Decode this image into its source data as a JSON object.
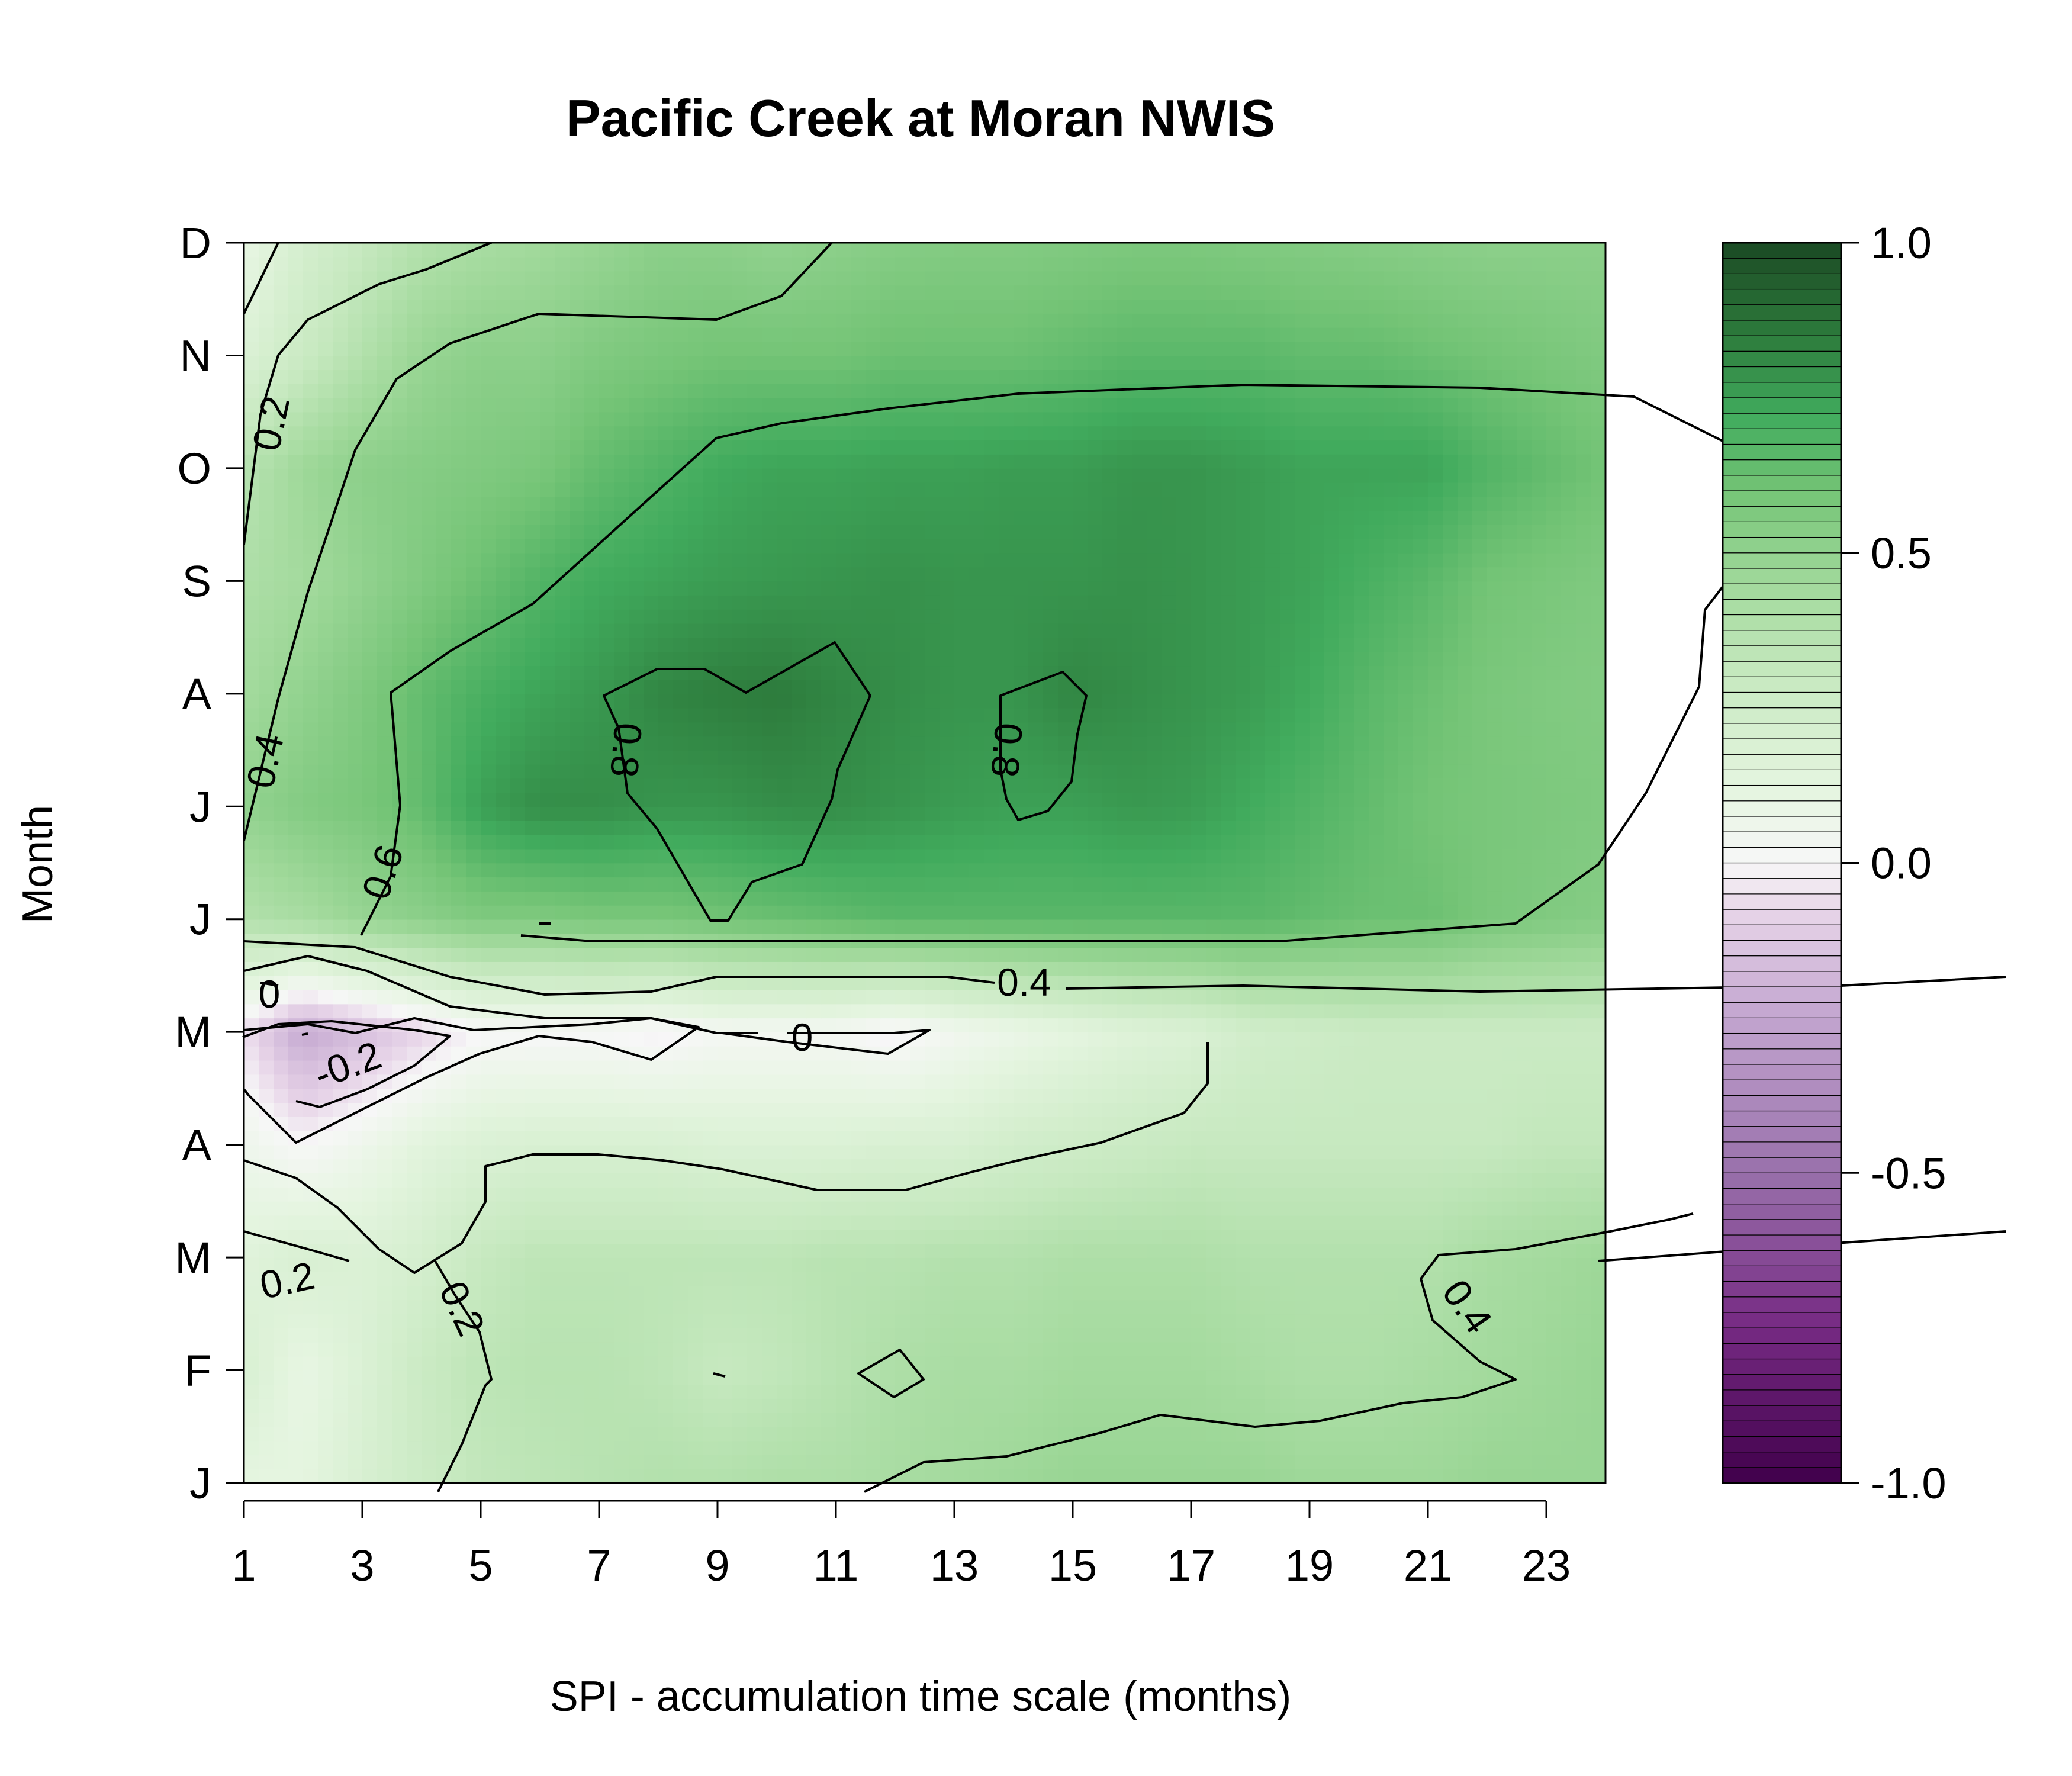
{
  "chart_data": {
    "type": "heatmap",
    "title": "Pacific Creek at Moran NWIS",
    "xlabel": "SPI - accumulation time scale (months)",
    "ylabel": "Month",
    "x_ticks": [
      "1",
      "3",
      "5",
      "7",
      "9",
      "11",
      "13",
      "15",
      "17",
      "19",
      "21",
      "23"
    ],
    "x_tick_values": [
      1,
      3,
      5,
      7,
      9,
      11,
      13,
      15,
      17,
      19,
      21,
      23
    ],
    "y_ticks": [
      "J",
      "F",
      "M",
      "A",
      "M",
      "J",
      "J",
      "A",
      "S",
      "O",
      "N",
      "D"
    ],
    "xlim": [
      1,
      24
    ],
    "ylim": [
      1,
      12
    ],
    "zlim": [
      -1,
      1
    ],
    "colorbar": {
      "ticks": [
        "1.0",
        "0.5",
        "0.0",
        "-0.5",
        "-1.0"
      ],
      "tick_values": [
        1.0,
        0.5,
        0.0,
        -0.5,
        -1.0
      ],
      "levels": 80
    },
    "colors": {
      "low": "#40004b",
      "mid": "#f7f7f7",
      "high": "#00441b",
      "stops": [
        [
          -1.0,
          "#40004b"
        ],
        [
          -0.75,
          "#762a83"
        ],
        [
          -0.5,
          "#9970ab"
        ],
        [
          -0.25,
          "#c2a5cf"
        ],
        [
          -0.08,
          "#e7d4e8"
        ],
        [
          0.0,
          "#f7f7f7"
        ],
        [
          0.12,
          "#e5f5e0"
        ],
        [
          0.3,
          "#c7e9c0"
        ],
        [
          0.45,
          "#a1d99b"
        ],
        [
          0.6,
          "#74c476"
        ],
        [
          0.72,
          "#41ab5d"
        ],
        [
          0.85,
          "#2d7b3c"
        ],
        [
          1.0,
          "#1b4a24"
        ]
      ]
    },
    "contour_labels": [
      "0.2",
      "0.4",
      "0.6",
      "0.8",
      "0.8",
      "0",
      "-0.2",
      "0",
      "0.4",
      "0.2",
      "0.2",
      "0.4"
    ],
    "x_months": [
      1,
      2,
      3,
      4,
      5,
      6,
      7,
      8,
      9,
      10,
      11,
      12,
      13,
      14,
      15,
      16,
      17,
      18,
      19,
      20,
      21,
      22,
      23,
      24
    ],
    "z": [
      [
        0.12,
        0.12,
        0.2,
        0.27,
        0.32,
        0.34,
        0.36,
        0.38,
        0.38,
        0.4,
        0.4,
        0.42,
        0.44,
        0.46,
        0.48,
        0.48,
        0.48,
        0.48,
        0.46,
        0.46,
        0.46,
        0.48,
        0.48,
        0.48
      ],
      [
        0.2,
        0.1,
        0.18,
        0.28,
        0.34,
        0.36,
        0.36,
        0.34,
        0.3,
        0.32,
        0.36,
        0.4,
        0.42,
        0.42,
        0.44,
        0.44,
        0.44,
        0.42,
        0.4,
        0.4,
        0.42,
        0.44,
        0.46,
        0.48
      ],
      [
        0.15,
        0.2,
        0.18,
        0.22,
        0.3,
        0.34,
        0.34,
        0.34,
        0.34,
        0.34,
        0.36,
        0.36,
        0.38,
        0.38,
        0.4,
        0.4,
        0.4,
        0.38,
        0.38,
        0.38,
        0.38,
        0.42,
        0.44,
        0.46
      ],
      [
        0.06,
        0.0,
        0.06,
        0.14,
        0.18,
        0.2,
        0.2,
        0.2,
        0.18,
        0.18,
        0.18,
        0.2,
        0.2,
        0.24,
        0.26,
        0.28,
        0.3,
        0.3,
        0.3,
        0.3,
        0.3,
        0.3,
        0.32,
        0.32
      ],
      [
        -0.05,
        -0.24,
        -0.16,
        -0.08,
        0.0,
        0.0,
        0.0,
        -0.02,
        0.02,
        0.02,
        0.02,
        -0.02,
        0.04,
        0.08,
        0.12,
        0.16,
        0.18,
        0.24,
        0.26,
        0.28,
        0.28,
        0.28,
        0.28,
        0.28
      ],
      [
        0.38,
        0.42,
        0.48,
        0.52,
        0.56,
        0.56,
        0.58,
        0.58,
        0.6,
        0.62,
        0.64,
        0.66,
        0.66,
        0.66,
        0.66,
        0.66,
        0.66,
        0.66,
        0.64,
        0.62,
        0.62,
        0.58,
        0.56,
        0.54
      ],
      [
        0.5,
        0.55,
        0.58,
        0.64,
        0.75,
        0.8,
        0.8,
        0.78,
        0.78,
        0.8,
        0.8,
        0.78,
        0.76,
        0.75,
        0.75,
        0.77,
        0.76,
        0.72,
        0.68,
        0.64,
        0.6,
        0.58,
        0.57,
        0.56
      ],
      [
        0.44,
        0.5,
        0.56,
        0.64,
        0.7,
        0.74,
        0.77,
        0.82,
        0.84,
        0.85,
        0.82,
        0.8,
        0.78,
        0.78,
        0.82,
        0.8,
        0.78,
        0.76,
        0.72,
        0.66,
        0.62,
        0.58,
        0.56,
        0.55
      ],
      [
        0.4,
        0.44,
        0.5,
        0.56,
        0.62,
        0.68,
        0.72,
        0.74,
        0.76,
        0.77,
        0.78,
        0.79,
        0.78,
        0.78,
        0.78,
        0.79,
        0.78,
        0.76,
        0.74,
        0.7,
        0.66,
        0.6,
        0.58,
        0.56
      ],
      [
        0.36,
        0.46,
        0.52,
        0.54,
        0.56,
        0.58,
        0.64,
        0.68,
        0.72,
        0.74,
        0.74,
        0.75,
        0.75,
        0.76,
        0.76,
        0.78,
        0.78,
        0.76,
        0.74,
        0.74,
        0.74,
        0.68,
        0.64,
        0.6
      ],
      [
        0.18,
        0.28,
        0.38,
        0.48,
        0.52,
        0.52,
        0.56,
        0.58,
        0.6,
        0.6,
        0.6,
        0.62,
        0.62,
        0.62,
        0.64,
        0.66,
        0.66,
        0.66,
        0.64,
        0.64,
        0.62,
        0.6,
        0.58,
        0.56
      ],
      [
        0.1,
        0.22,
        0.3,
        0.38,
        0.42,
        0.45,
        0.48,
        0.52,
        0.52,
        0.5,
        0.52,
        0.54,
        0.55,
        0.55,
        0.56,
        0.57,
        0.57,
        0.56,
        0.55,
        0.54,
        0.53,
        0.52,
        0.52,
        0.52
      ]
    ]
  }
}
